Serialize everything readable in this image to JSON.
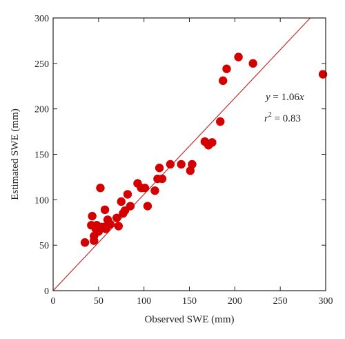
{
  "chart_data": {
    "type": "scatter",
    "title": "",
    "xlabel": "Observed SWE (mm)",
    "ylabel": "Estimated SWE (mm)",
    "xlim": [
      0,
      300
    ],
    "ylim": [
      0,
      300
    ],
    "xticks": [
      0,
      50,
      100,
      150,
      200,
      250,
      300
    ],
    "yticks": [
      0,
      50,
      100,
      150,
      200,
      250,
      300
    ],
    "grid": false,
    "legend": "none",
    "marker_color": "#d40000",
    "fit_line": {
      "slope": 1.06,
      "color": "#c03030"
    },
    "annotations": {
      "equation": {
        "var_y": "y",
        "equals": " = 1.06",
        "var_x": "x"
      },
      "r_squared": {
        "var": "r",
        "sup": "2",
        "rest": " = 0.83"
      }
    },
    "points": [
      [
        35,
        53
      ],
      [
        42,
        72
      ],
      [
        43,
        82
      ],
      [
        45,
        55
      ],
      [
        45,
        60
      ],
      [
        47,
        68
      ],
      [
        48,
        72
      ],
      [
        50,
        65
      ],
      [
        52,
        113
      ],
      [
        53,
        70
      ],
      [
        56,
        70
      ],
      [
        57,
        89
      ],
      [
        58,
        68
      ],
      [
        60,
        78
      ],
      [
        63,
        73
      ],
      [
        70,
        80
      ],
      [
        72,
        71
      ],
      [
        75,
        98
      ],
      [
        77,
        85
      ],
      [
        79,
        88
      ],
      [
        82,
        106
      ],
      [
        85,
        93
      ],
      [
        93,
        118
      ],
      [
        97,
        113
      ],
      [
        101,
        113
      ],
      [
        104,
        93
      ],
      [
        112,
        110
      ],
      [
        115,
        123
      ],
      [
        117,
        135
      ],
      [
        120,
        123
      ],
      [
        129,
        139
      ],
      [
        141,
        139
      ],
      [
        151,
        132
      ],
      [
        153,
        139
      ],
      [
        167,
        164
      ],
      [
        171,
        160
      ],
      [
        175,
        163
      ],
      [
        184,
        186
      ],
      [
        187,
        231
      ],
      [
        191,
        244
      ],
      [
        204,
        257
      ],
      [
        220,
        250
      ],
      [
        297,
        238
      ]
    ]
  }
}
